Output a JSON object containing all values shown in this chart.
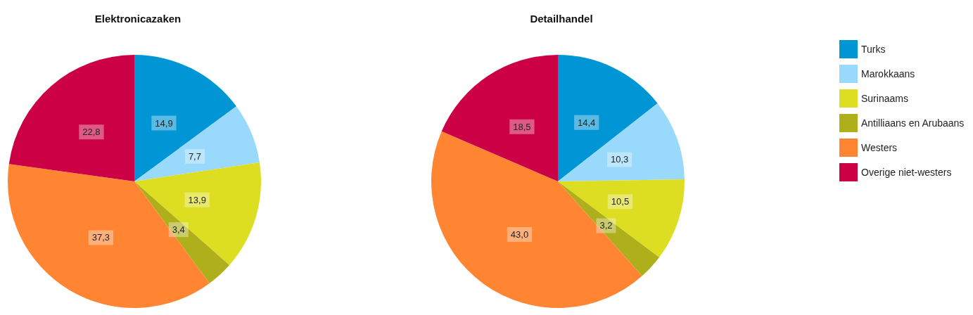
{
  "chart_data": {
    "type": "pie",
    "categories": [
      "Turks",
      "Marokkaans",
      "Surinaams",
      "Antilliaans en Arubaans",
      "Westers",
      "Overige niet-westers"
    ],
    "colors": [
      "#0095d5",
      "#99d9fb",
      "#dddd22",
      "#afaf1c",
      "#ff8533",
      "#cc0044"
    ],
    "legend": "right",
    "series": [
      {
        "name": "Elektronicazaken",
        "values": [
          14.9,
          7.7,
          13.9,
          3.4,
          37.3,
          22.8
        ],
        "value_labels": [
          "14,9",
          "7,7",
          "13,9",
          "3,4",
          "37,3",
          "22,8"
        ]
      },
      {
        "name": "Detailhandel",
        "values": [
          14.4,
          10.3,
          10.5,
          3.2,
          43.0,
          18.5
        ],
        "value_labels": [
          "14,4",
          "10,3",
          "10,5",
          "3,2",
          "43,0",
          "18,5"
        ]
      }
    ]
  }
}
